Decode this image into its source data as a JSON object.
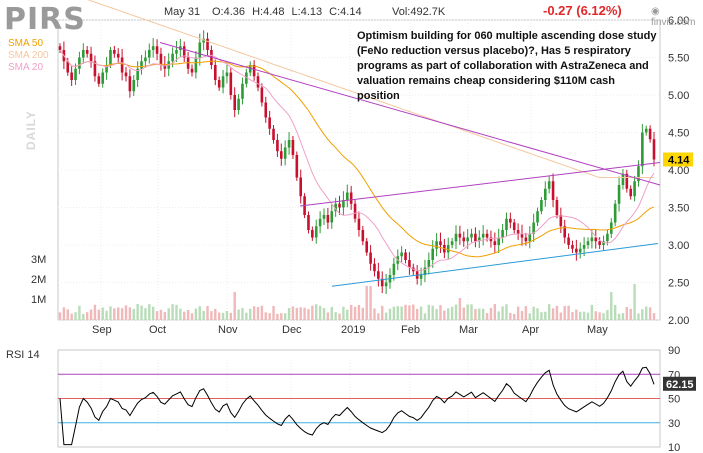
{
  "header": {
    "ticker": "PIRS",
    "date": "May 31",
    "ohlc": "O:4.36 H:4.48 L:4.13 C:4.14",
    "volume": "Vol:492.7K",
    "change": "-0.27 (6.12%)",
    "logo": "finviz.com"
  },
  "legend": {
    "sma50": "SMA 50",
    "sma200": "SMA 200",
    "sma20": "SMA 20",
    "period": "DAILY"
  },
  "annotation": "Optimism building for 060 multiple ascending dose study (FeNo reduction versus placebo)?, Has 5 respiratory programs as part of collaboration with AstraZeneca and valuation remains cheap considering $110M cash position",
  "rsi_label": "RSI 14",
  "colors": {
    "up": "#2e9b36",
    "down": "#c8102e",
    "sma50": "#f0a000",
    "sma200": "#f4c8a0",
    "sma20": "#f0a0c8",
    "trendline": "#b040c0",
    "support": "#2a9ad8",
    "last_price_badge": "#ffd700",
    "rsi_line": "#000000"
  },
  "chart_data": [
    {
      "type": "candlestick",
      "y_ticks": [
        "6.00",
        "5.50",
        "5.00",
        "4.50",
        "4.00",
        "3.50",
        "3.00",
        "2.50",
        "2.00"
      ],
      "ylim": [
        2.0,
        6.0
      ],
      "x_ticks": [
        "Sep",
        "Oct",
        "Nov",
        "Dec",
        "2019",
        "Feb",
        "Mar",
        "Apr",
        "May"
      ],
      "volume_ticks": [
        "3M",
        "2M",
        "1M"
      ],
      "last_price": "4.14",
      "closes": [
        5.6,
        5.45,
        5.3,
        5.2,
        5.35,
        5.5,
        5.6,
        5.55,
        5.45,
        5.25,
        5.15,
        5.3,
        5.4,
        5.6,
        5.55,
        5.5,
        5.3,
        5.25,
        5.05,
        5.2,
        5.35,
        5.45,
        5.5,
        5.6,
        5.65,
        5.55,
        5.4,
        5.35,
        5.45,
        5.55,
        5.6,
        5.65,
        5.5,
        5.35,
        5.3,
        5.5,
        5.7,
        5.75,
        5.6,
        5.4,
        5.2,
        5.1,
        5.25,
        5.3,
        5.0,
        4.8,
        4.95,
        5.15,
        5.3,
        5.4,
        5.25,
        5.1,
        4.9,
        4.7,
        4.55,
        4.4,
        4.25,
        4.15,
        4.3,
        4.4,
        4.2,
        3.9,
        3.65,
        3.4,
        3.2,
        3.1,
        3.25,
        3.35,
        3.4,
        3.3,
        3.45,
        3.55,
        3.5,
        3.6,
        3.7,
        3.55,
        3.35,
        3.2,
        3.05,
        2.9,
        2.75,
        2.65,
        2.55,
        2.45,
        2.5,
        2.6,
        2.75,
        2.85,
        2.9,
        2.8,
        2.7,
        2.65,
        2.55,
        2.6,
        2.7,
        2.8,
        2.95,
        3.05,
        3.0,
        2.9,
        3.0,
        3.05,
        3.15,
        3.1,
        3.05,
        3.1,
        3.15,
        3.05,
        3.1,
        3.15,
        3.1,
        3.05,
        3.0,
        3.1,
        3.2,
        3.35,
        3.3,
        3.2,
        3.15,
        3.1,
        3.05,
        3.15,
        3.3,
        3.45,
        3.6,
        3.75,
        3.85,
        3.6,
        3.4,
        3.25,
        3.1,
        3.0,
        2.95,
        2.9,
        2.95,
        3.0,
        3.05,
        3.1,
        3.05,
        3.0,
        3.05,
        3.15,
        3.3,
        3.55,
        3.8,
        3.95,
        3.75,
        3.65,
        3.85,
        4.05,
        4.5,
        4.55,
        4.41,
        4.14
      ],
      "rsi": {
        "ticks": [
          "90",
          "70",
          "50",
          "30",
          "10"
        ],
        "levels": {
          "overbought": 70,
          "middle": 50,
          "oversold": 30
        },
        "ylim": [
          10,
          90
        ],
        "last_value": "62.15"
      }
    }
  ]
}
